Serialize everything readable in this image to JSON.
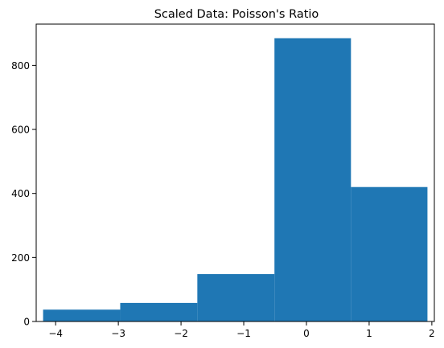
{
  "chart_data": {
    "type": "bar",
    "title": "Scaled Data: Poisson's Ratio",
    "xlabel": "",
    "ylabel": "",
    "bar_color": "#1f77b4",
    "bins": [
      {
        "x0": -4.2,
        "x1": -2.97,
        "count": 37
      },
      {
        "x0": -2.97,
        "x1": -1.74,
        "count": 58
      },
      {
        "x0": -1.74,
        "x1": -0.51,
        "count": 148
      },
      {
        "x0": -0.51,
        "x1": 0.71,
        "count": 885
      },
      {
        "x0": 0.71,
        "x1": 1.93,
        "count": 420
      }
    ],
    "xlim": [
      -4.31,
      2.04
    ],
    "ylim": [
      0,
      929
    ],
    "xticks": [
      "−4",
      "−3",
      "−2",
      "−1",
      "0",
      "1",
      "2"
    ],
    "xtick_values": [
      -4,
      -3,
      -2,
      -1,
      0,
      1,
      2
    ],
    "yticks": [
      "0",
      "200",
      "400",
      "600",
      "800"
    ],
    "ytick_values": [
      0,
      200,
      400,
      600,
      800
    ],
    "grid": false,
    "legend": "none"
  }
}
